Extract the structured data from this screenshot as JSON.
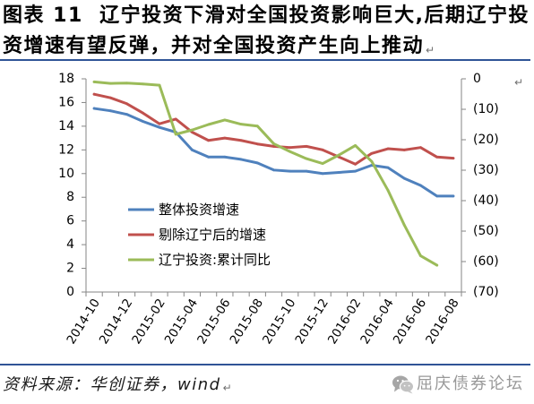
{
  "caption": {
    "lines": [
      "图表 11  辽宁投资下滑对全国投资影响巨大,后期辽宁投",
      "资增速有望反弹，并对全国投资产生向上推动"
    ],
    "paragraph_mark": "↵"
  },
  "chart_paragraph_mark": "↵",
  "chart_data": {
    "type": "line",
    "x": [
      "2014-10",
      "2014-11",
      "2014-12",
      "2015-01",
      "2015-02",
      "2015-03",
      "2015-04",
      "2015-05",
      "2015-06",
      "2015-07",
      "2015-08",
      "2015-09",
      "2015-10",
      "2015-11",
      "2015-12",
      "2016-01",
      "2016-02",
      "2016-03",
      "2016-04",
      "2016-05",
      "2016-06",
      "2016-07",
      "2016-08"
    ],
    "xtick_labels": [
      "2014-10",
      "2014-12",
      "2015-02",
      "2015-04",
      "2015-06",
      "2015-08",
      "2015-10",
      "2015-12",
      "2016-02",
      "2016-04",
      "2016-06",
      "2016-08"
    ],
    "y_left": {
      "range": [
        0,
        18
      ],
      "ticks": [
        {
          "value": 0,
          "label": "0"
        },
        {
          "value": 2,
          "label": "2"
        },
        {
          "value": 4,
          "label": "4"
        },
        {
          "value": 6,
          "label": "6"
        },
        {
          "value": 8,
          "label": "8"
        },
        {
          "value": 10,
          "label": "10"
        },
        {
          "value": 12,
          "label": "12"
        },
        {
          "value": 14,
          "label": "14"
        },
        {
          "value": 16,
          "label": "16"
        },
        {
          "value": 18,
          "label": "18"
        }
      ]
    },
    "y_right": {
      "range": [
        -70,
        0
      ],
      "ticks": [
        {
          "value": 0,
          "label": "0"
        },
        {
          "value": -10,
          "label": "(10)"
        },
        {
          "value": -20,
          "label": "(20)"
        },
        {
          "value": -30,
          "label": "(30)"
        },
        {
          "value": -40,
          "label": "(40)"
        },
        {
          "value": -50,
          "label": "(50)"
        },
        {
          "value": -60,
          "label": "(60)"
        },
        {
          "value": -70,
          "label": "(70)"
        }
      ]
    },
    "series": [
      {
        "name": "整体投资增速",
        "axis": "left",
        "color": "#4F81BD",
        "values": [
          15.5,
          15.3,
          15.0,
          14.4,
          13.9,
          13.5,
          12.0,
          11.4,
          11.4,
          11.2,
          10.9,
          10.3,
          10.2,
          10.2,
          10.0,
          10.1,
          10.2,
          10.7,
          10.5,
          9.6,
          9.0,
          8.1,
          8.1
        ]
      },
      {
        "name": "剔除辽宁后的增速",
        "axis": "left",
        "color": "#C0504D",
        "values": [
          16.7,
          16.4,
          15.9,
          15.1,
          14.2,
          14.6,
          13.5,
          12.8,
          13.0,
          12.8,
          12.5,
          12.3,
          12.2,
          12.3,
          12.0,
          11.4,
          10.8,
          11.7,
          12.1,
          12.0,
          12.2,
          11.4,
          11.3
        ]
      },
      {
        "name": "辽宁投资:累计同比",
        "axis": "right",
        "color": "#9BBB59",
        "values": [
          -1.0,
          -1.5,
          -1.4,
          -1.7,
          -2.1,
          -18.2,
          -16.8,
          -15.0,
          -13.5,
          -14.9,
          -15.5,
          -21.3,
          -23.9,
          -26.2,
          -27.8,
          -25.0,
          -21.9,
          -27.1,
          -36.6,
          -48.0,
          -58.1,
          -61.2,
          null
        ]
      }
    ],
    "legend": "inside-left",
    "grid": false
  },
  "source": {
    "text": "资料来源：华创证券，wind",
    "paragraph_mark": "↵"
  },
  "watermark": {
    "icon": "wechat-icon",
    "text": "屈庆债券论坛"
  },
  "colors": {
    "rule": "#2F5496",
    "axis": "#868686",
    "watermark": "#999999"
  }
}
